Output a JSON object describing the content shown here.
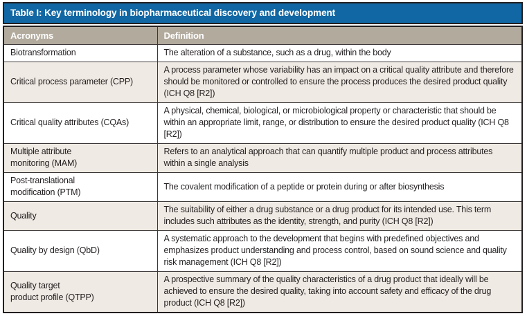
{
  "table": {
    "title": "Table I: Key terminology in biopharmaceutical discovery and development",
    "columns": [
      "Acronyms",
      "Definition"
    ],
    "rows": [
      {
        "acronym": "Biotransformation",
        "definition": "The alteration of a substance, such as a drug, within the body"
      },
      {
        "acronym": "Critical process parameter (CPP)",
        "definition": "A process parameter whose variability has an impact on a critical quality attribute and therefore should be monitored or controlled to ensure the process produces the desired product quality (ICH Q8 [R2])"
      },
      {
        "acronym": "Critical quality attributes (CQAs)",
        "definition": "A physical, chemical, biological, or microbiological property or characteristic that should be within an appropriate limit, range, or distribution to ensure the desired product quality (ICH Q8 [R2])"
      },
      {
        "acronym": "Multiple attribute\nmonitoring (MAM)",
        "definition": "Refers to an analytical approach that can quantify multiple product and process attributes within a single analysis"
      },
      {
        "acronym": "Post-translational\nmodification (PTM)",
        "definition": "The covalent modification of a peptide or protein during or after biosynthesis"
      },
      {
        "acronym": "Quality",
        "definition": "The suitability of either a drug substance or a drug product for its intended use. This term includes such attributes as the identity, strength, and purity (ICH Q8 [R2])"
      },
      {
        "acronym": "Quality by design (QbD)",
        "definition": "A systematic approach to the development that begins with predefined objectives and emphasizes product understanding and process control, based on sound science and quality risk management (ICH Q8 [R2])"
      },
      {
        "acronym": "Quality target\nproduct profile (QTPP)",
        "definition": "A prospective summary of the quality characteristics of a drug product that ideally will be achieved to ensure the desired quality, taking into account safety and efficacy of the drug product (ICH Q8 [R2])"
      }
    ]
  },
  "colors": {
    "title_bar_bg": "#1167a3",
    "header_bg": "#b2aa9d",
    "row_alt_bg": "#efeae3",
    "border": "#231f20",
    "body_text": "#231f20",
    "header_text": "#ffffff"
  }
}
